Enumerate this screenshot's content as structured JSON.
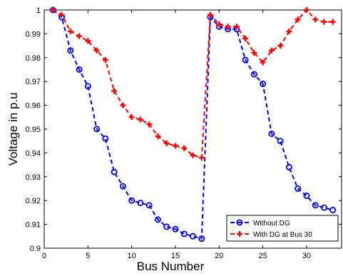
{
  "chart_data": {
    "type": "line",
    "x_label": "Bus Number",
    "y_label": "Voltage in p.u",
    "x": [
      1,
      2,
      3,
      4,
      5,
      6,
      7,
      8,
      9,
      10,
      11,
      12,
      13,
      14,
      15,
      16,
      17,
      18,
      19,
      20,
      21,
      22,
      23,
      24,
      25,
      26,
      27,
      28,
      29,
      30,
      31,
      32,
      33
    ],
    "series": [
      {
        "name": "Without DG",
        "color": "#0000ff",
        "marker": "circle",
        "values": [
          1.0,
          0.997,
          0.983,
          0.975,
          0.968,
          0.95,
          0.946,
          0.932,
          0.926,
          0.92,
          0.919,
          0.918,
          0.912,
          0.909,
          0.908,
          0.906,
          0.905,
          0.904,
          0.997,
          0.993,
          0.992,
          0.992,
          0.979,
          0.973,
          0.969,
          0.948,
          0.945,
          0.934,
          0.925,
          0.922,
          0.918,
          0.917,
          0.916
        ]
      },
      {
        "name": "With DG at Bus 30",
        "color": "#ff0000",
        "marker": "plus",
        "values": [
          1.0,
          0.998,
          0.991,
          0.989,
          0.987,
          0.983,
          0.979,
          0.966,
          0.96,
          0.955,
          0.954,
          0.952,
          0.947,
          0.944,
          0.943,
          0.942,
          0.939,
          0.938,
          0.998,
          0.994,
          0.993,
          0.993,
          0.988,
          0.982,
          0.978,
          0.983,
          0.985,
          0.991,
          0.996,
          1.0,
          0.996,
          0.995,
          0.995
        ]
      }
    ],
    "xlim": [
      0,
      34
    ],
    "xticks": [
      0,
      5,
      10,
      15,
      20,
      25,
      30
    ],
    "ylim": [
      0.9,
      1
    ],
    "yticks": [
      0.9,
      0.91,
      0.92,
      0.93,
      0.94,
      0.95,
      0.96,
      0.97,
      0.98,
      0.99,
      1
    ],
    "legend": "lower right"
  }
}
